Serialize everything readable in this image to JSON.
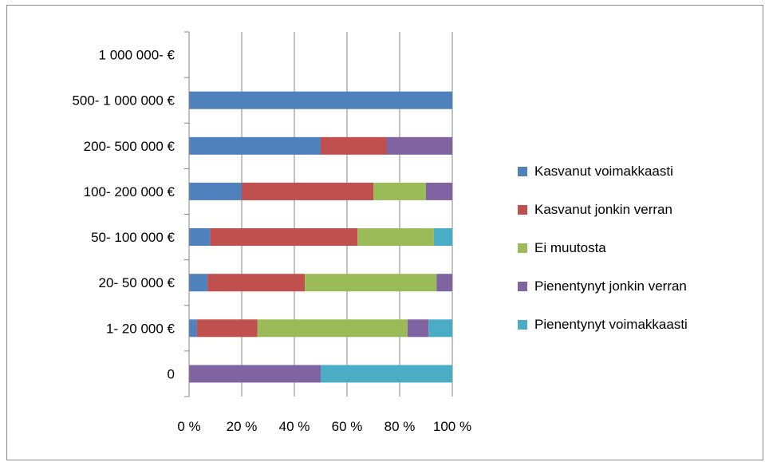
{
  "chart_data": {
    "type": "bar",
    "orientation": "horizontal",
    "stacked": "percent",
    "categories": [
      "0",
      "1-  20 000 €",
      "20- 50 000 €",
      "50- 100 000 €",
      "100- 200 000 €",
      "200- 500 000 €",
      "500- 1 000 000 €",
      "1 000 000-  €"
    ],
    "series": [
      {
        "name": "Kasvanut voimakkaasti",
        "color": "#4f81bd",
        "values": [
          0,
          3,
          7,
          8,
          20,
          50,
          100,
          0
        ]
      },
      {
        "name": "Kasvanut jonkin verran",
        "color": "#c0504d",
        "values": [
          0,
          23,
          37,
          56,
          50,
          25,
          0,
          0
        ]
      },
      {
        "name": "Ei muutosta",
        "color": "#9bbb59",
        "values": [
          0,
          57,
          50,
          29,
          20,
          0,
          0,
          0
        ]
      },
      {
        "name": "Pienentynyt jonkin verran",
        "color": "#8064a2",
        "values": [
          50,
          8,
          6,
          0,
          10,
          25,
          0,
          0
        ]
      },
      {
        "name": "Pienentynyt voimakkaasti",
        "color": "#4bacc6",
        "values": [
          50,
          9,
          0,
          7,
          0,
          0,
          0,
          0
        ]
      }
    ],
    "xticks": [
      "0 %",
      "20 %",
      "40 %",
      "60 %",
      "80 %",
      "100 %"
    ],
    "xlim": [
      0,
      100
    ],
    "grid": "vertical",
    "legend": "right",
    "title": "",
    "xlabel": "",
    "ylabel": ""
  }
}
